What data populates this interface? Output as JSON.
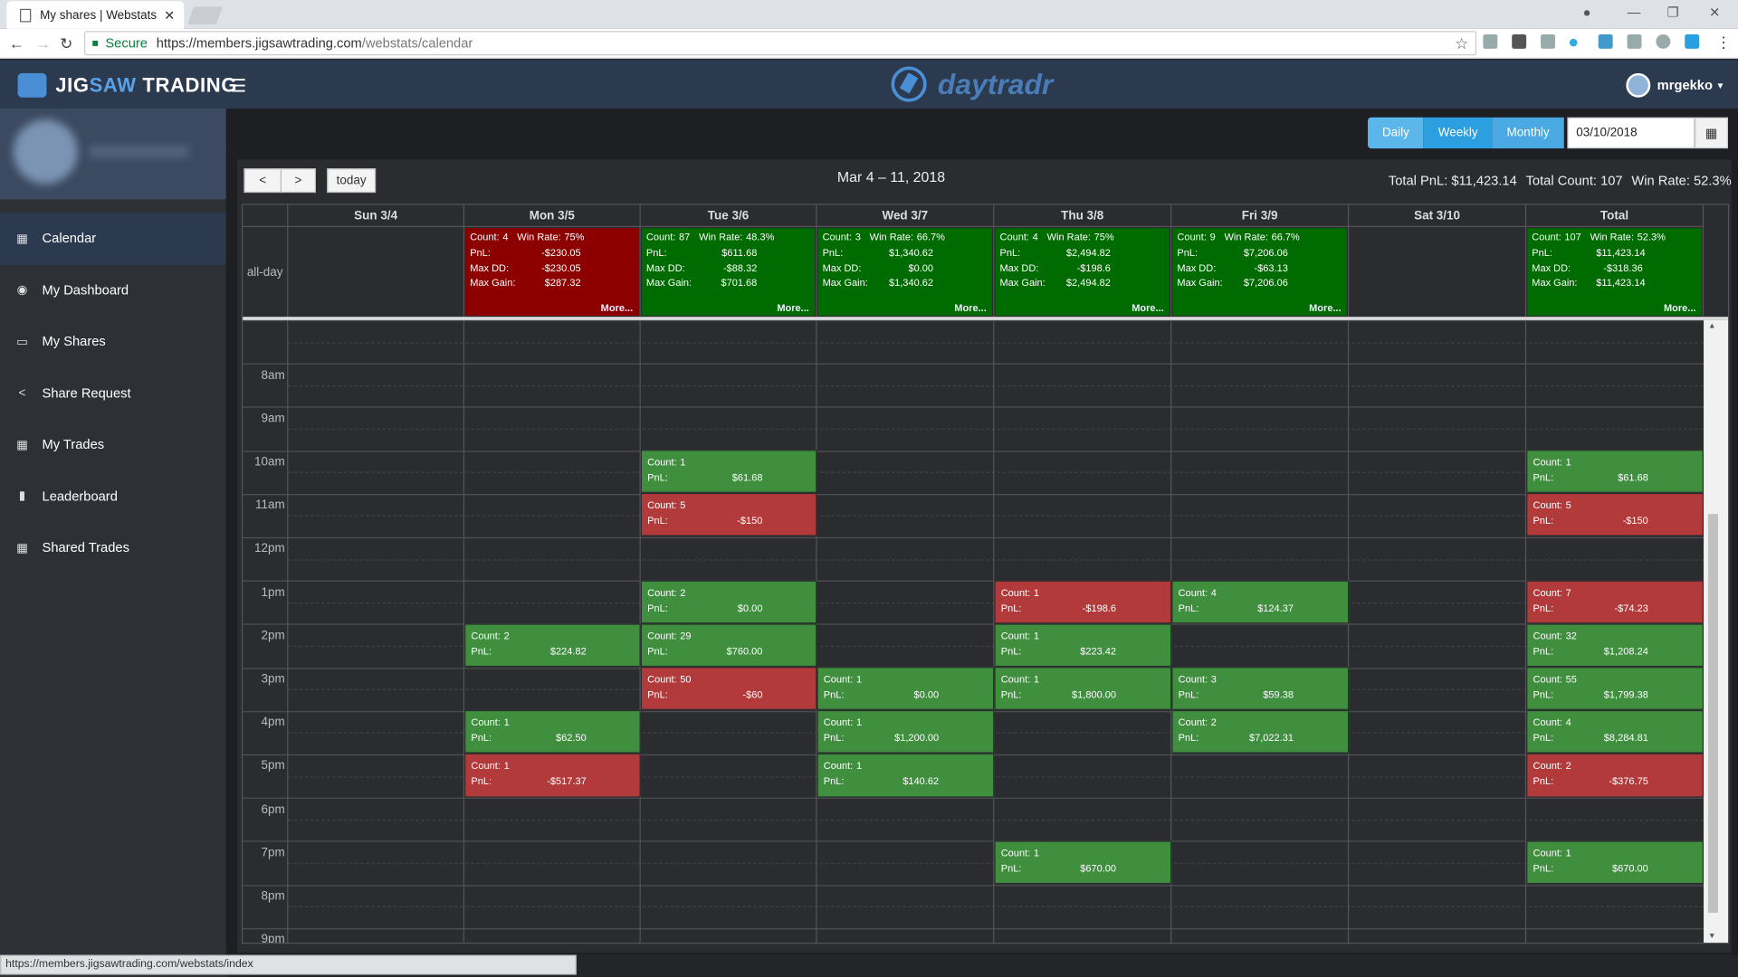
{
  "browser": {
    "tab_title": "My shares | Webstats",
    "secure": "Secure",
    "url_host": "https://members.jigsawtrading.com",
    "url_path": "/webstats/calendar",
    "status_url": "https://members.jigsawtrading.com/webstats/index"
  },
  "header": {
    "logo_a": "JIG",
    "logo_b": "SAW",
    "logo_c": " TRADING",
    "brand": "daytradr",
    "user": "mrgekko"
  },
  "sidebar": {
    "items": [
      {
        "label": "Calendar",
        "icon": "calendar-icon",
        "glyph": "▦"
      },
      {
        "label": "My Dashboard",
        "icon": "dashboard-icon",
        "glyph": "◉"
      },
      {
        "label": "My Shares",
        "icon": "monitor-icon",
        "glyph": "▭"
      },
      {
        "label": "Share Request",
        "icon": "share-icon",
        "glyph": "<"
      },
      {
        "label": "My Trades",
        "icon": "table-icon",
        "glyph": "▦"
      },
      {
        "label": "Leaderboard",
        "icon": "bar-chart-icon",
        "glyph": "▮"
      },
      {
        "label": "Shared Trades",
        "icon": "table-icon",
        "glyph": "▦"
      }
    ]
  },
  "controls": {
    "daily": "Daily",
    "weekly": "Weekly",
    "monthly": "Monthly",
    "date": "03/10/2018",
    "today": "today",
    "prev": "<",
    "next": ">"
  },
  "calendar": {
    "title": "Mar 4 – 11, 2018",
    "total_pnl": "Total PnL: $11,423.14",
    "total_count": "Total Count: 107",
    "win_rate": "Win Rate: 52.3%",
    "allday": "all-day",
    "days": [
      "Sun 3/4",
      "Mon 3/5",
      "Tue 3/6",
      "Wed 3/7",
      "Thu 3/8",
      "Fri 3/9",
      "Sat 3/10",
      "Total"
    ],
    "summaries": [
      null,
      {
        "color": "red",
        "count": "4",
        "win": "75%",
        "pnl": "-$230.05",
        "dd": "-$230.05",
        "gain": "$287.32"
      },
      {
        "color": "grn",
        "count": "87",
        "win": "48.3%",
        "pnl": "$611.68",
        "dd": "-$88.32",
        "gain": "$701.68"
      },
      {
        "color": "grn",
        "count": "3",
        "win": "66.7%",
        "pnl": "$1,340.62",
        "dd": "$0.00",
        "gain": "$1,340.62"
      },
      {
        "color": "grn",
        "count": "4",
        "win": "75%",
        "pnl": "$2,494.82",
        "dd": "-$198.6",
        "gain": "$2,494.82"
      },
      {
        "color": "grn",
        "count": "9",
        "win": "66.7%",
        "pnl": "$7,206.06",
        "dd": "-$63.13",
        "gain": "$7,206.06"
      },
      null,
      {
        "color": "grn",
        "count": "107",
        "win": "52.3%",
        "pnl": "$11,423.14",
        "dd": "-$318.36",
        "gain": "$11,423.14"
      }
    ],
    "labels": {
      "count": "Count:",
      "win": "Win Rate:",
      "pnl": "PnL:",
      "dd": "Max DD:",
      "gain": "Max Gain:",
      "more": "More..."
    },
    "hours": [
      "8am",
      "9am",
      "10am",
      "11am",
      "12pm",
      "1pm",
      "2pm",
      "3pm",
      "4pm",
      "5pm",
      "6pm",
      "7pm",
      "8pm",
      "9pm"
    ],
    "events": [
      {
        "day": 2,
        "hour": 10,
        "count": "1",
        "pnl": "$61.68",
        "c": "g"
      },
      {
        "day": 7,
        "hour": 10,
        "count": "1",
        "pnl": "$61.68",
        "c": "g"
      },
      {
        "day": 2,
        "hour": 11,
        "count": "5",
        "pnl": "-$150",
        "c": "r"
      },
      {
        "day": 7,
        "hour": 11,
        "count": "5",
        "pnl": "-$150",
        "c": "r"
      },
      {
        "day": 2,
        "hour": 13,
        "count": "2",
        "pnl": "$0.00",
        "c": "g"
      },
      {
        "day": 4,
        "hour": 13,
        "count": "1",
        "pnl": "-$198.6",
        "c": "r"
      },
      {
        "day": 5,
        "hour": 13,
        "count": "4",
        "pnl": "$124.37",
        "c": "g"
      },
      {
        "day": 7,
        "hour": 13,
        "count": "7",
        "pnl": "-$74.23",
        "c": "r"
      },
      {
        "day": 1,
        "hour": 14,
        "count": "2",
        "pnl": "$224.82",
        "c": "g"
      },
      {
        "day": 2,
        "hour": 14,
        "count": "29",
        "pnl": "$760.00",
        "c": "g"
      },
      {
        "day": 4,
        "hour": 14,
        "count": "1",
        "pnl": "$223.42",
        "c": "g"
      },
      {
        "day": 7,
        "hour": 14,
        "count": "32",
        "pnl": "$1,208.24",
        "c": "g"
      },
      {
        "day": 2,
        "hour": 15,
        "count": "50",
        "pnl": "-$60",
        "c": "r"
      },
      {
        "day": 3,
        "hour": 15,
        "count": "1",
        "pnl": "$0.00",
        "c": "g"
      },
      {
        "day": 4,
        "hour": 15,
        "count": "1",
        "pnl": "$1,800.00",
        "c": "g"
      },
      {
        "day": 5,
        "hour": 15,
        "count": "3",
        "pnl": "$59.38",
        "c": "g"
      },
      {
        "day": 7,
        "hour": 15,
        "count": "55",
        "pnl": "$1,799.38",
        "c": "g"
      },
      {
        "day": 1,
        "hour": 16,
        "count": "1",
        "pnl": "$62.50",
        "c": "g"
      },
      {
        "day": 3,
        "hour": 16,
        "count": "1",
        "pnl": "$1,200.00",
        "c": "g"
      },
      {
        "day": 5,
        "hour": 16,
        "count": "2",
        "pnl": "$7,022.31",
        "c": "g"
      },
      {
        "day": 7,
        "hour": 16,
        "count": "4",
        "pnl": "$8,284.81",
        "c": "g"
      },
      {
        "day": 1,
        "hour": 17,
        "count": "1",
        "pnl": "-$517.37",
        "c": "r"
      },
      {
        "day": 3,
        "hour": 17,
        "count": "1",
        "pnl": "$140.62",
        "c": "g"
      },
      {
        "day": 7,
        "hour": 17,
        "count": "2",
        "pnl": "-$376.75",
        "c": "r"
      },
      {
        "day": 4,
        "hour": 19,
        "count": "1",
        "pnl": "$670.00",
        "c": "g"
      },
      {
        "day": 7,
        "hour": 19,
        "count": "1",
        "pnl": "$670.00",
        "c": "g"
      }
    ]
  },
  "colors": {
    "header": "#2b3a4e",
    "accent": "#2b9fe0",
    "summary_red": "#8c0000",
    "summary_green": "#006b00",
    "event_green": "#3f8f3f",
    "event_red": "#b33a3a"
  }
}
